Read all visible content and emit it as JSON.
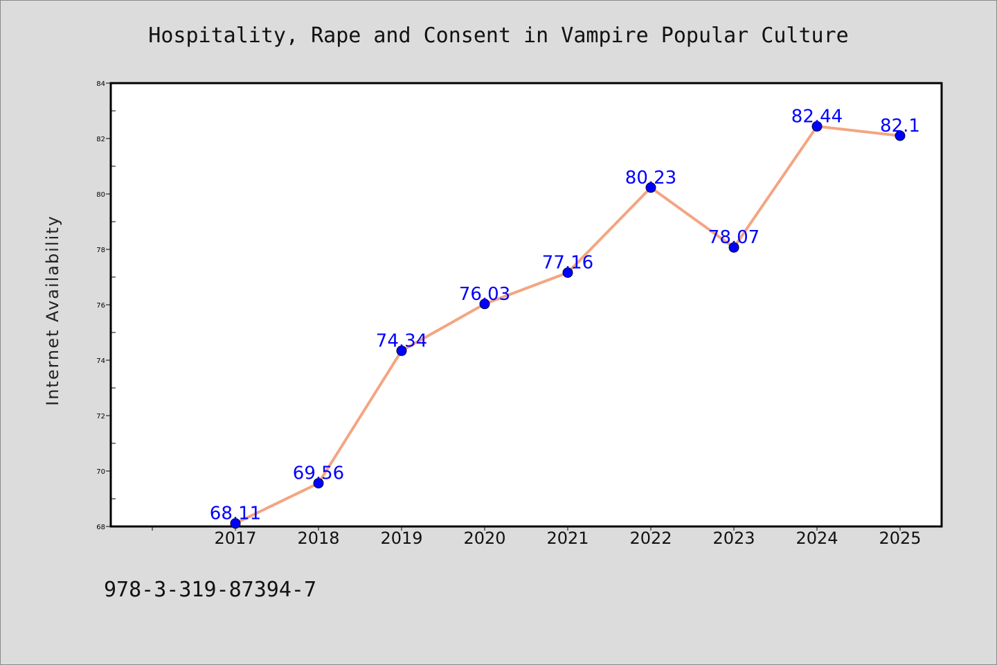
{
  "chart_data": {
    "type": "line",
    "title": "Hospitality, Rape and Consent in Vampire Popular Culture",
    "xlabel": "",
    "ylabel": "Internet Availability",
    "x": [
      "2017",
      "2018",
      "2019",
      "2020",
      "2021",
      "2022",
      "2023",
      "2024",
      "2025"
    ],
    "series": [
      {
        "values": [
          68.11,
          69.56,
          74.34,
          76.03,
          77.16,
          80.23,
          78.07,
          82.44,
          82.1
        ],
        "labels": [
          "68.11",
          "69.56",
          "74.34",
          "76.03",
          "77.16",
          "80.23",
          "78.07",
          "82.44",
          "82.1"
        ],
        "line_color": "#f4a582",
        "marker_color": "#0000ff",
        "label_color": "#0000ff"
      }
    ],
    "ylim": [
      68,
      84
    ],
    "yticks": [
      "68",
      "70",
      "72",
      "74",
      "76",
      "78",
      "80",
      "82",
      "84"
    ],
    "grid": false,
    "legend": "none"
  },
  "footer": {
    "code": "978-3-319-87394-7"
  }
}
